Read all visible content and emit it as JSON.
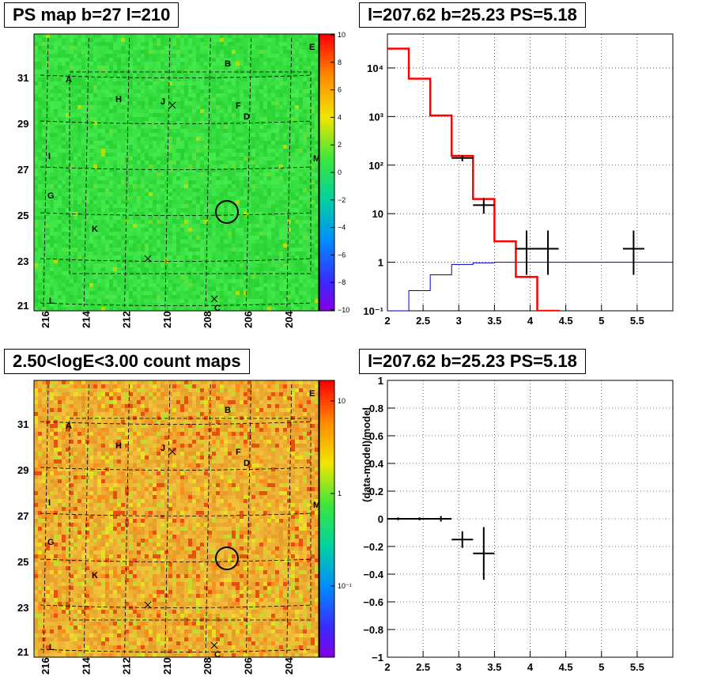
{
  "panels": {
    "map_top_title": "PS map b=27 l=210",
    "spectrum_title": "l=207.62 b=25.23 PS=5.18",
    "map_bottom_title": "2.50<logE<3.00 count maps",
    "ratio_title": "l=207.62 b=25.23 PS=5.18"
  },
  "colors": {
    "model_line": "#ff0000",
    "background_line": "#0000cc",
    "data_points": "#000000",
    "grid": "#000000"
  },
  "maps": {
    "x_ticks": [
      "216",
      "214",
      "212",
      "210",
      "208",
      "206",
      "204"
    ],
    "y_ticks": [
      "31",
      "29",
      "27",
      "25",
      "23",
      "21"
    ],
    "source_labels": [
      "A",
      "B",
      "C",
      "D",
      "E",
      "F",
      "G",
      "H",
      "I",
      "J",
      "K",
      "L",
      "M"
    ],
    "top_colorbar": {
      "range": [
        -10,
        10
      ],
      "ticks": [
        "10",
        "8",
        "6",
        "4",
        "2",
        "0",
        "−2",
        "−4",
        "−6",
        "−8",
        "−10"
      ]
    },
    "bottom_colorbar": {
      "scale": "log",
      "ticks": [
        "10",
        "1",
        "10⁻¹"
      ]
    },
    "circle_marker": {
      "l": 207.62,
      "b": 25.23
    }
  },
  "chart_data": [
    {
      "type": "line",
      "name": "spectrum",
      "xlim": [
        2,
        6
      ],
      "ylim": [
        0.1,
        50000
      ],
      "yscale": "log",
      "x_ticks": [
        "2",
        "2.5",
        "3",
        "3.5",
        "4",
        "4.5",
        "5",
        "5.5"
      ],
      "y_ticks": [
        "10⁻¹",
        "1",
        "10",
        "10²",
        "10³",
        "10⁴"
      ],
      "grid": true,
      "model_step": {
        "edges": [
          2.0,
          2.3,
          2.6,
          2.9,
          3.2,
          3.5,
          3.8,
          4.1,
          4.4,
          6.0
        ],
        "values": [
          25000,
          6000,
          1050,
          155,
          20,
          2.7,
          0.5,
          0.1,
          0.05
        ]
      },
      "background_step": {
        "edges": [
          2.0,
          2.3,
          2.6,
          2.9,
          3.2,
          3.5,
          6.0
        ],
        "values": [
          0.1,
          0.26,
          0.55,
          0.9,
          0.97,
          1.0
        ]
      },
      "data_points": [
        {
          "x": 3.05,
          "y": 140,
          "xerr": 0.15,
          "ylo": 120,
          "yhi": 160
        },
        {
          "x": 3.35,
          "y": 15,
          "xerr": 0.15,
          "ylo": 10,
          "yhi": 21
        },
        {
          "x": 3.95,
          "y": 1.9,
          "xerr": 0.15,
          "ylo": 0.55,
          "yhi": 4.5
        },
        {
          "x": 4.25,
          "y": 1.9,
          "xerr": 0.15,
          "ylo": 0.55,
          "yhi": 4.5
        },
        {
          "x": 5.45,
          "y": 1.9,
          "xerr": 0.15,
          "ylo": 0.55,
          "yhi": 4.5
        }
      ]
    },
    {
      "type": "scatter",
      "name": "ratio",
      "xlim": [
        2,
        6
      ],
      "ylim": [
        -1,
        1
      ],
      "ylabel": "(data-model)/model",
      "x_ticks": [
        "2",
        "2.5",
        "3",
        "3.5",
        "4",
        "4.5",
        "5",
        "5.5"
      ],
      "y_ticks": [
        "1",
        "0.8",
        "0.6",
        "0.4",
        "0.2",
        "0",
        "−0.2",
        "−0.4",
        "−0.6",
        "−0.8",
        "−1"
      ],
      "grid": true,
      "data_points": [
        {
          "x": 2.15,
          "y": 0.0,
          "xerr": 0.15,
          "yerr": 0.01
        },
        {
          "x": 2.45,
          "y": 0.0,
          "xerr": 0.15,
          "yerr": 0.01
        },
        {
          "x": 2.75,
          "y": 0.0,
          "xerr": 0.15,
          "yerr": 0.02
        },
        {
          "x": 3.05,
          "y": -0.15,
          "xerr": 0.15,
          "yerr": 0.06
        },
        {
          "x": 3.35,
          "y": -0.25,
          "xerr": 0.15,
          "yerr": 0.19
        }
      ]
    }
  ]
}
